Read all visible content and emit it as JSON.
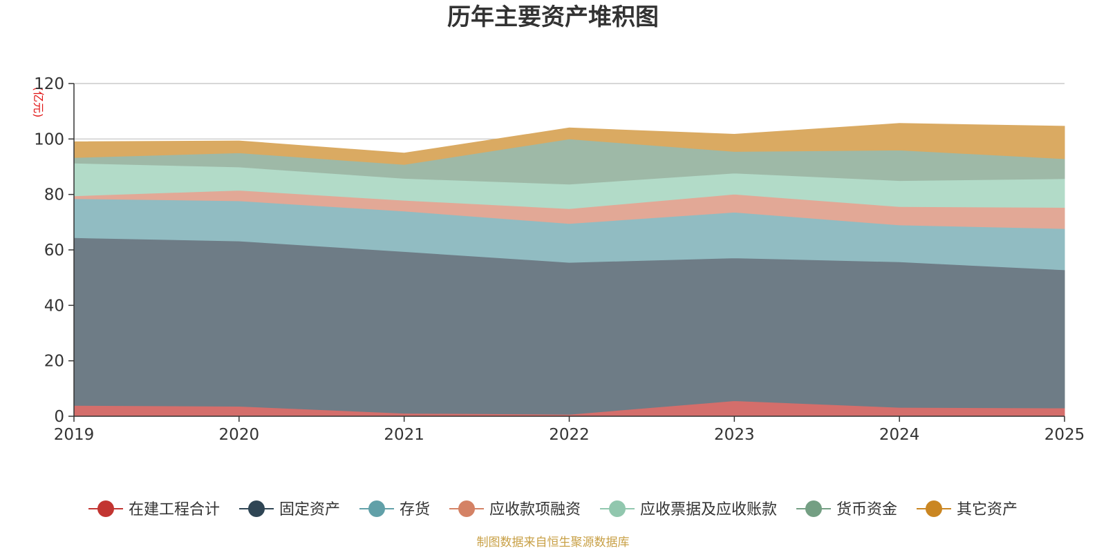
{
  "chart_data": {
    "type": "area",
    "stacked": true,
    "title": "历年主要资产堆积图",
    "ylabel": "(亿元)",
    "xlabel": "",
    "x": [
      "2019",
      "2020",
      "2021",
      "2022",
      "2023",
      "2024",
      "2025"
    ],
    "ylim": [
      0,
      120
    ],
    "yticks": [
      0,
      20,
      40,
      60,
      80,
      100,
      120
    ],
    "grid": true,
    "legend_position": "bottom",
    "series": [
      {
        "name": "在建工程合计",
        "color": "#c23531",
        "fill": "#d46e6b",
        "values": [
          3.9,
          3.6,
          1.1,
          0.7,
          5.6,
          3.2,
          3.0
        ]
      },
      {
        "name": "固定资产",
        "color": "#2f4554",
        "fill": "#6e7c86",
        "values": [
          60.5,
          59.6,
          58.3,
          54.8,
          51.5,
          52.5,
          49.8
        ]
      },
      {
        "name": "存货",
        "color": "#61a0a8",
        "fill": "#91bcc2",
        "values": [
          14.1,
          14.5,
          14.6,
          14.0,
          16.5,
          13.3,
          14.9
        ]
      },
      {
        "name": "应收款项融资",
        "color": "#d48265",
        "fill": "#e2a896",
        "values": [
          1.0,
          3.8,
          3.9,
          5.4,
          6.5,
          6.6,
          7.6
        ]
      },
      {
        "name": "应收票据及应收账款",
        "color": "#91c7ae",
        "fill": "#b2dbc8",
        "values": [
          11.8,
          8.4,
          7.9,
          8.8,
          7.6,
          9.4,
          10.4
        ]
      },
      {
        "name": "货币资金",
        "color": "#749f83",
        "fill": "#9eb9a7",
        "values": [
          2.0,
          5.1,
          5.0,
          16.3,
          7.8,
          11.0,
          7.2
        ]
      },
      {
        "name": "其它资产",
        "color": "#ca8622",
        "fill": "#daaa62",
        "values": [
          5.7,
          4.3,
          4.1,
          4.0,
          6.2,
          9.6,
          11.7
        ]
      }
    ]
  },
  "footer": {
    "source": "制图数据来自恒生聚源数据库",
    "source_color": "#c8a046"
  },
  "colors": {
    "axis": "#333333",
    "grid": "#bfbfbf",
    "title": "#333333",
    "ylabel": "#e01010"
  }
}
